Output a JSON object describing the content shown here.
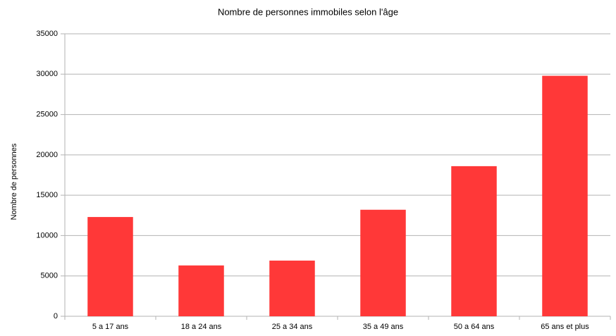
{
  "chart_data": {
    "type": "bar",
    "title": "Nombre de personnes immobiles selon l'âge",
    "y_label": "Nombre de personnes",
    "categories": [
      "5 a 17 ans",
      "18 a 24 ans",
      "25 a 34 ans",
      "35 a 49 ans",
      "50 a 64 ans",
      "65 ans et plus"
    ],
    "values": [
      12300,
      6300,
      6900,
      13200,
      18600,
      29800
    ],
    "color": "#ff3838",
    "ylim": [
      0,
      35000
    ],
    "yticks": [
      0,
      5000,
      10000,
      15000,
      20000,
      25000,
      30000,
      35000
    ],
    "grid": true
  }
}
